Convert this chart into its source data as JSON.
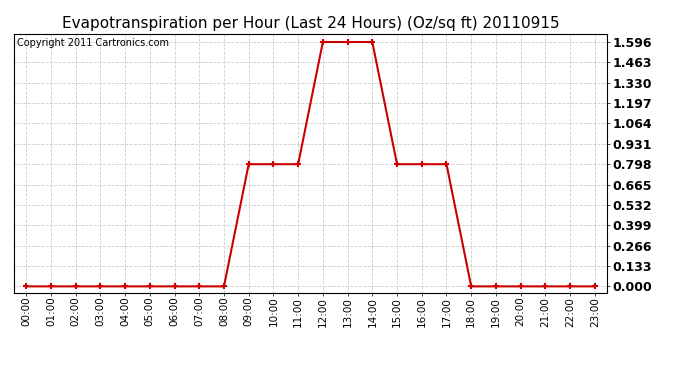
{
  "title": "Evapotranspiration per Hour (Last 24 Hours) (Oz/sq ft) 20110915",
  "copyright_text": "Copyright 2011 Cartronics.com",
  "x_labels": [
    "00:00",
    "01:00",
    "02:00",
    "03:00",
    "04:00",
    "05:00",
    "06:00",
    "07:00",
    "08:00",
    "09:00",
    "10:00",
    "11:00",
    "12:00",
    "13:00",
    "14:00",
    "15:00",
    "16:00",
    "17:00",
    "18:00",
    "19:00",
    "20:00",
    "21:00",
    "22:00",
    "23:00"
  ],
  "y_values": [
    0.0,
    0.0,
    0.0,
    0.0,
    0.0,
    0.0,
    0.0,
    0.0,
    0.0,
    0.798,
    0.798,
    0.798,
    1.596,
    1.596,
    1.596,
    0.798,
    0.798,
    0.798,
    0.0,
    0.0,
    0.0,
    0.0,
    0.0,
    0.0
  ],
  "yticks": [
    0.0,
    0.133,
    0.266,
    0.399,
    0.532,
    0.665,
    0.798,
    0.931,
    1.064,
    1.197,
    1.33,
    1.463,
    1.596
  ],
  "line_color": "#cc0000",
  "marker": "+",
  "marker_size": 5,
  "marker_linewidth": 1.5,
  "background_color": "#ffffff",
  "plot_bg_color": "#ffffff",
  "grid_color": "#cccccc",
  "title_fontsize": 11,
  "tick_fontsize": 7.5,
  "ytick_fontsize": 9,
  "copyright_fontsize": 7,
  "line_width": 1.5
}
